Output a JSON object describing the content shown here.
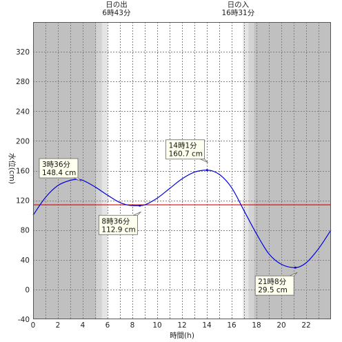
{
  "chart_data": {
    "type": "line",
    "title": "",
    "xlabel": "時間(h)",
    "ylabel": "水位(cm)",
    "xlim": [
      0,
      24
    ],
    "ylim": [
      -40,
      360
    ],
    "x_ticks": [
      0,
      2,
      4,
      6,
      8,
      10,
      12,
      14,
      16,
      18,
      20,
      22
    ],
    "y_ticks": [
      -40,
      0,
      40,
      80,
      120,
      160,
      200,
      240,
      280,
      320
    ],
    "grid": true,
    "colors": {
      "night": "#c0c0c0",
      "twilight_outer": "#d3d3d3",
      "twilight_inner": "#e4e4e4",
      "day": "#ffffff",
      "curve": "#0000e0",
      "reference_line": "#e00000",
      "callout_fill": "#ffffee"
    },
    "twilight_bands": {
      "morning": [
        5.1,
        5.55,
        6.0
      ],
      "evening": [
        16.9,
        17.35,
        17.8
      ]
    },
    "reference_level": 114,
    "sunrise": {
      "label": "日の出",
      "time": "6時43分",
      "x": 6.72
    },
    "sunset": {
      "label": "日の入",
      "time": "16時31分",
      "x": 16.52
    },
    "extrema": [
      {
        "x": 3.6,
        "y": 148.4,
        "time": "3時36分",
        "level": "148.4 cm",
        "type": "high"
      },
      {
        "x": 8.6,
        "y": 112.9,
        "time": "8時36分",
        "level": "112.9 cm",
        "type": "low"
      },
      {
        "x": 14.017,
        "y": 160.7,
        "time": "14時1分",
        "level": "160.7 cm",
        "type": "high"
      },
      {
        "x": 21.133,
        "y": 29.5,
        "time": "21時8分",
        "level": "29.5 cm",
        "type": "low"
      }
    ],
    "series": [
      {
        "x": [
          0,
          1,
          2,
          3,
          3.6,
          4,
          5,
          6,
          7,
          8,
          8.6,
          9,
          10,
          11,
          12,
          13,
          14.017,
          15,
          16,
          17,
          18,
          19,
          20,
          21.133,
          22,
          23,
          24
        ],
        "values": [
          100,
          124,
          140,
          147,
          148.4,
          147,
          138,
          127,
          117,
          113,
          112.9,
          114,
          123,
          136,
          149,
          158,
          160.7,
          155,
          137,
          106,
          75,
          48,
          34,
          29.5,
          36,
          55,
          80
        ]
      }
    ]
  }
}
